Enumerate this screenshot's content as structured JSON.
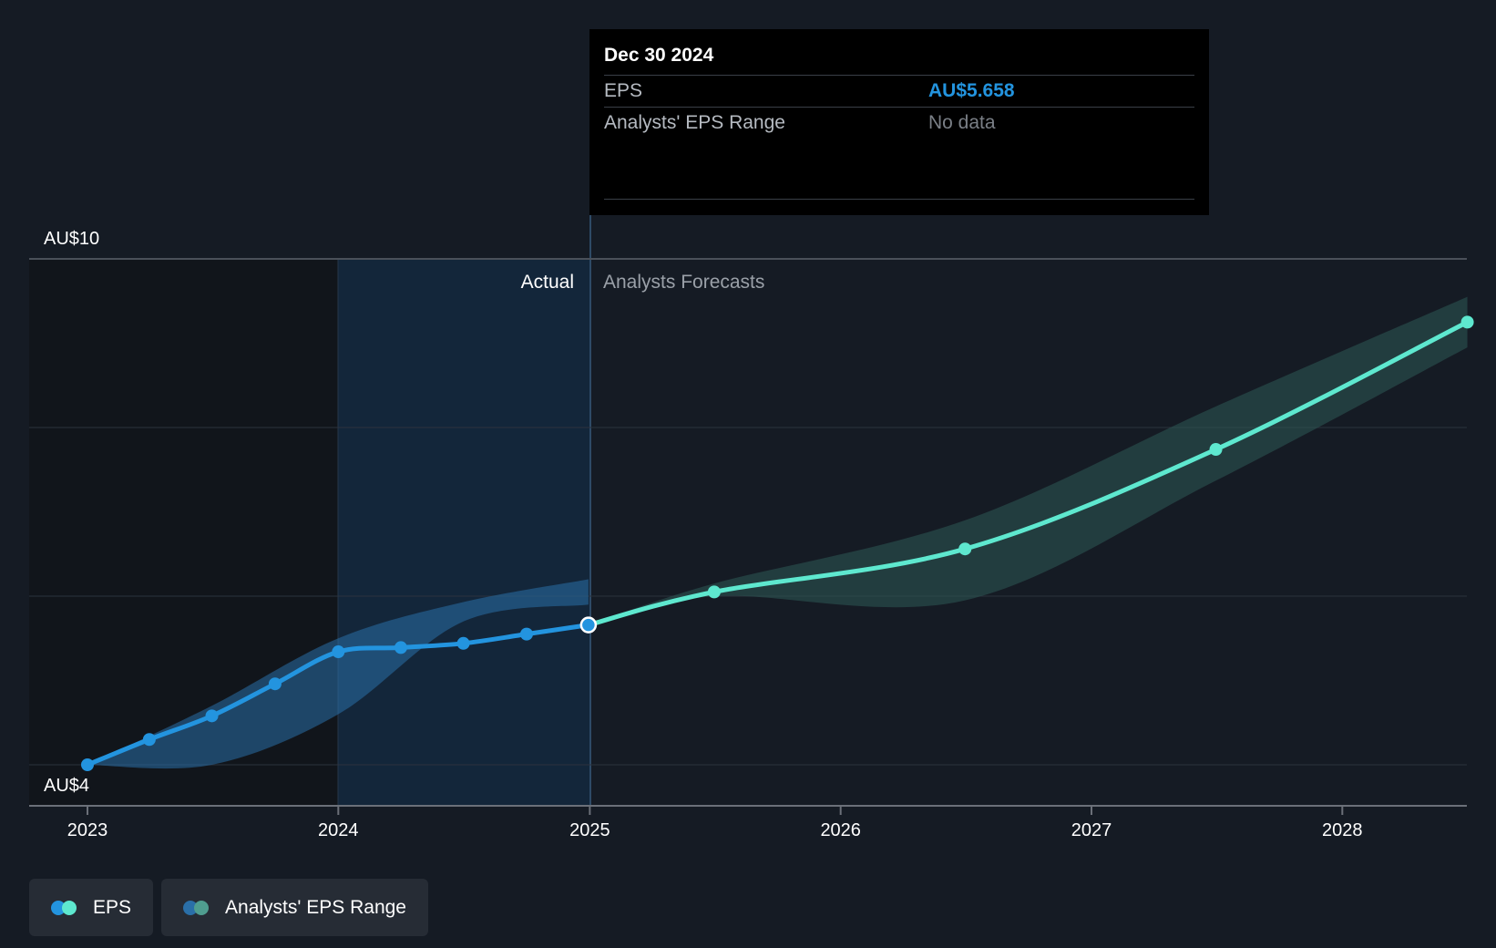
{
  "chart_data": {
    "type": "line",
    "y_axis": {
      "tick_labels": [
        "AU$10",
        "AU$4"
      ],
      "ylim": [
        4,
        10
      ]
    },
    "x_axis": {
      "tick_labels": [
        "2023",
        "2024",
        "2025",
        "2026",
        "2027",
        "2028"
      ]
    },
    "regions": {
      "actual_label": "Actual",
      "forecast_label": "Analysts Forecasts"
    },
    "series": [
      {
        "name": "EPS",
        "color": "#2394df",
        "points": [
          {
            "x": "2023-01-01",
            "y": 4.0
          },
          {
            "x": "2023-04-01",
            "y": 4.3
          },
          {
            "x": "2023-07-01",
            "y": 4.58
          },
          {
            "x": "2023-10-01",
            "y": 4.96
          },
          {
            "x": "2024-01-01",
            "y": 5.34
          },
          {
            "x": "2024-04-01",
            "y": 5.39
          },
          {
            "x": "2024-07-01",
            "y": 5.44
          },
          {
            "x": "2024-10-01",
            "y": 5.55
          },
          {
            "x": "2024-12-30",
            "y": 5.658
          }
        ]
      },
      {
        "name": "EPS",
        "color": "#5ee8cf",
        "points": [
          {
            "x": "2024-12-30",
            "y": 5.658
          },
          {
            "x": "2025-07-01",
            "y": 6.05
          },
          {
            "x": "2026-07-01",
            "y": 6.56
          },
          {
            "x": "2027-07-01",
            "y": 7.74
          },
          {
            "x": "2028-07-01",
            "y": 9.25
          }
        ]
      }
    ],
    "range_bands": [
      {
        "name": "Analysts' EPS Range",
        "color": "#2a6fa8",
        "upper": [
          {
            "x": "2023-01-01",
            "y": 4.0
          },
          {
            "x": "2023-07-01",
            "y": 4.7
          },
          {
            "x": "2024-01-01",
            "y": 5.5
          },
          {
            "x": "2024-07-01",
            "y": 5.93
          },
          {
            "x": "2024-12-30",
            "y": 6.2
          }
        ],
        "lower": [
          {
            "x": "2024-12-30",
            "y": 5.9
          },
          {
            "x": "2024-07-01",
            "y": 5.7
          },
          {
            "x": "2024-01-01",
            "y": 4.6
          },
          {
            "x": "2023-07-01",
            "y": 4.0
          },
          {
            "x": "2023-01-01",
            "y": 4.0
          }
        ]
      },
      {
        "name": "Analysts' EPS Range",
        "color": "#2e5a55",
        "upper": [
          {
            "x": "2024-12-30",
            "y": 5.658
          },
          {
            "x": "2025-07-01",
            "y": 6.15
          },
          {
            "x": "2026-07-01",
            "y": 6.9
          },
          {
            "x": "2027-07-01",
            "y": 8.25
          },
          {
            "x": "2028-07-01",
            "y": 9.55
          }
        ],
        "lower": [
          {
            "x": "2028-07-01",
            "y": 8.95
          },
          {
            "x": "2027-07-01",
            "y": 7.37
          },
          {
            "x": "2026-07-01",
            "y": 5.95
          },
          {
            "x": "2025-07-01",
            "y": 6.0
          },
          {
            "x": "2024-12-30",
            "y": 5.658
          }
        ]
      }
    ],
    "highlight_point": {
      "x": "2024-12-30",
      "y": 5.658
    },
    "grid": true
  },
  "tooltip": {
    "date": "Dec 30 2024",
    "eps_label": "EPS",
    "eps_value": "AU$5.658",
    "range_label": "Analysts' EPS Range",
    "range_value": "No data"
  },
  "legend": {
    "items": [
      {
        "label": "EPS",
        "colors": [
          "#2394df",
          "#5ee8cf"
        ]
      },
      {
        "label": "Analysts' EPS Range",
        "colors": [
          "#2a6fa8",
          "#4f9d8f"
        ]
      }
    ]
  }
}
